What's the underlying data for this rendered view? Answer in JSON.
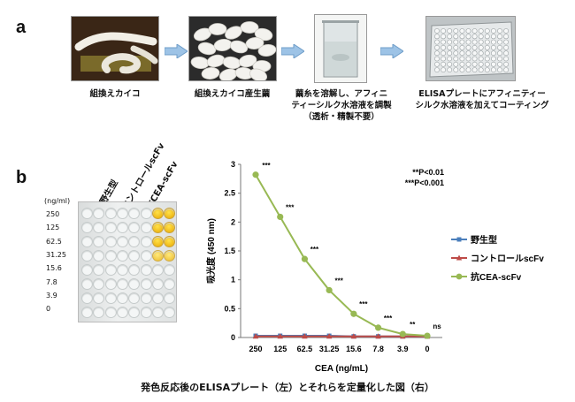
{
  "panel_a": {
    "letter": "a",
    "steps": [
      {
        "caption": [
          "組換えカイコ"
        ]
      },
      {
        "caption": [
          "組換えカイコ産生繭"
        ]
      },
      {
        "caption": [
          "繭糸を溶解し、アフィニ",
          "ティーシルク水溶液を調製",
          "（透析・精製不要）"
        ]
      },
      {
        "caption": [
          "ELISAプレートにアフィニティー",
          "シルク水溶液を加えてコーティング"
        ]
      }
    ]
  },
  "panel_b": {
    "letter": "b",
    "plate": {
      "unit_label": "(ng/ml)",
      "concentrations": [
        "250",
        "125",
        "62.5",
        "31.25",
        "15.6",
        "7.8",
        "3.9",
        "0"
      ],
      "column_labels": [
        "野生型",
        "コントロールscFv",
        "抗CEA-scFv"
      ]
    }
  },
  "chart_data": {
    "type": "line",
    "categories": [
      "250",
      "125",
      "62.5",
      "31.25",
      "15.6",
      "7.8",
      "3.9",
      "0"
    ],
    "xlabel": "CEA (ng/mL)",
    "ylabel": "吸光度 (450 nm)",
    "ylim": [
      0,
      3
    ],
    "yticks": [
      "0",
      "0.5",
      "1",
      "1.5",
      "2",
      "2.5",
      "3"
    ],
    "series": [
      {
        "name": "野生型",
        "color": "#4a7ebb",
        "marker": "square",
        "values": [
          0.03,
          0.03,
          0.03,
          0.03,
          0.02,
          0.02,
          0.02,
          0.02
        ]
      },
      {
        "name": "コントロールscFv",
        "color": "#be4b48",
        "marker": "triangle",
        "values": [
          0.02,
          0.02,
          0.02,
          0.02,
          0.02,
          0.02,
          0.02,
          0.02
        ]
      },
      {
        "name": "抗CEA-scFv",
        "color": "#98b954",
        "marker": "circle",
        "values": [
          2.82,
          2.09,
          1.36,
          0.82,
          0.41,
          0.17,
          0.06,
          0.03
        ]
      }
    ],
    "significance": [
      "***",
      "***",
      "***",
      "***",
      "***",
      "***",
      "**",
      "ns"
    ],
    "sig_legend": [
      "**P<0.01",
      "***P<0.001"
    ],
    "legend_position": "right"
  },
  "figure_caption": "発色反応後のELISAプレート（左）とそれらを定量化した図（右）"
}
